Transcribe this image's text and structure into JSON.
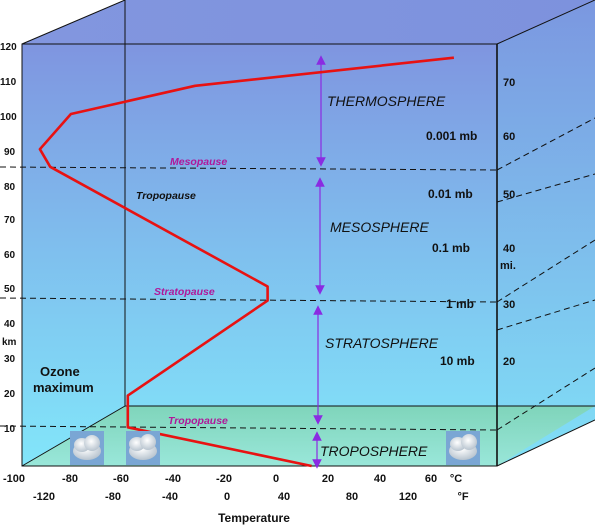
{
  "altitude_km_ticks": [
    "120",
    "110",
    "100",
    "90",
    "80",
    "70",
    "60",
    "50",
    "40",
    "30",
    "20",
    "10"
  ],
  "km_label": "km",
  "altitude_mi_ticks": [
    "70",
    "60",
    "50",
    "40",
    "30",
    "20"
  ],
  "mi_label": "mi.",
  "celsius_ticks": [
    "-100",
    "-80",
    "-60",
    "-40",
    "-20",
    "0",
    "20",
    "40",
    "60"
  ],
  "celsius_unit": "°C",
  "fahrenheit_ticks": [
    "-120",
    "-80",
    "-40",
    "0",
    "40",
    "80",
    "120"
  ],
  "fahrenheit_unit": "°F",
  "x_axis_title": "Temperature",
  "layers": {
    "thermosphere": "THERMOSPHERE",
    "mesosphere": "MESOSPHERE",
    "stratosphere": "STRATOSPHERE",
    "troposphere": "TROPOSPHERE"
  },
  "boundaries": {
    "mesopause": "Mesopause",
    "stratopause": "Stratopause",
    "tropopause_lower": "Tropopause",
    "tropopause_upper": "Tropopause"
  },
  "pressure_labels": [
    "0.001 mb",
    "0.01 mb",
    "0.1 mb",
    "1 mb",
    "10 mb"
  ],
  "ozone": {
    "line1": "Ozone",
    "line2": "maximum"
  },
  "colors": {
    "temperature_line": "#e81212",
    "arrows": "#8a2be2",
    "pause_text": "#b0189a",
    "sky_top": "#7f9be3",
    "sky_bottom": "#7fe0f8",
    "ground": "#8fd8bf"
  },
  "temperature_profile_c": [
    {
      "alt_km": 0,
      "temp_c": 15
    },
    {
      "alt_km": 11,
      "temp_c": -56
    },
    {
      "alt_km": 20,
      "temp_c": -56
    },
    {
      "alt_km": 47,
      "temp_c": -2
    },
    {
      "alt_km": 51,
      "temp_c": -2
    },
    {
      "alt_km": 85,
      "temp_c": -86
    },
    {
      "alt_km": 90,
      "temp_c": -90
    },
    {
      "alt_km": 100,
      "temp_c": -78
    },
    {
      "alt_km": 108,
      "temp_c": -30
    },
    {
      "alt_km": 116,
      "temp_c": 70
    }
  ],
  "icons": [
    "cloud-icon",
    "cloud-icon",
    "cloud-icon"
  ]
}
